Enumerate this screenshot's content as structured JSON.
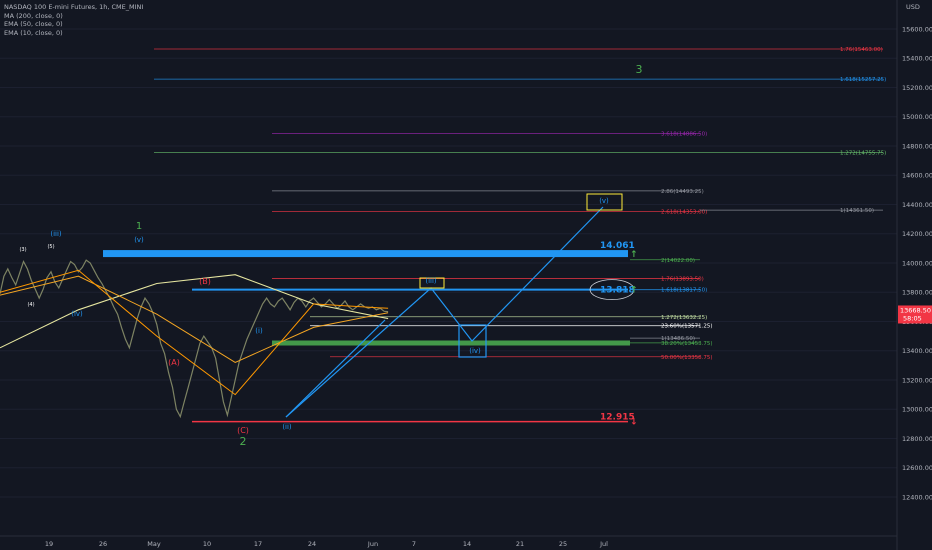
{
  "header": {
    "symbol": "NASDAQ 100 E-mini Futures, 1h, CME_MINI",
    "indicators": [
      "MA (200, close, 0)",
      "EMA (50, close, 0)",
      "EMA (10, close, 0)"
    ]
  },
  "currency": "USD",
  "price_tag": {
    "price": "13668.50",
    "countdown": "58:05",
    "value": 13668.5
  },
  "colors": {
    "bg": "#131722",
    "blue": "#2196f3",
    "green": "#4caf50",
    "red": "#f23645",
    "yellow": "#ffeb3b",
    "orange": "#ff9800",
    "ma": "#e6e6a0"
  },
  "chart_data": {
    "type": "line",
    "ylim": [
      12100,
      15800
    ],
    "y_ticks": [
      12400,
      12600,
      12800,
      13000,
      13200,
      13400,
      13600,
      13800,
      14000,
      14200,
      14400,
      14600,
      14800,
      15000,
      15200,
      15400,
      15600
    ],
    "x_ticks": [
      "19",
      "26",
      "May",
      "10",
      "17",
      "24",
      "Jun",
      "7",
      "14",
      "21",
      "25",
      "Jul"
    ],
    "fib_levels": [
      {
        "label": "1.76(15463.00)",
        "value": 15463,
        "color": "#f23645"
      },
      {
        "label": "1.618(15257.25)",
        "value": 15257.25,
        "color": "#2196f3"
      },
      {
        "label": "3.618(14886.50)",
        "value": 14886.5,
        "color": "#9c27b0"
      },
      {
        "label": "1.272(14755.75)",
        "value": 14755.75,
        "color": "#66bb6a"
      },
      {
        "label": "2.86(14493.25)",
        "value": 14493.25,
        "color": "#9598a1"
      },
      {
        "label": "2.618(14353.00)",
        "value": 14353,
        "color": "#f23645"
      },
      {
        "label": "1(14361.50)",
        "value": 14361.5,
        "color": "#9598a1"
      },
      {
        "label": "2(14022.00)",
        "value": 14022,
        "color": "#4caf50"
      },
      {
        "label": "1.76(13893.50)",
        "value": 13893.5,
        "color": "#f23645"
      },
      {
        "label": "1.618(13817.50)",
        "value": 13817.5,
        "color": "#2196f3"
      },
      {
        "label": "1.272(13632.25)",
        "value": 13632.25,
        "color": "#c5e1a5"
      },
      {
        "label": "23.60%(13571.25)",
        "value": 13571.25,
        "color": "#ffffff"
      },
      {
        "label": "1(13486.50)",
        "value": 13486.5,
        "color": "#9598a1"
      },
      {
        "label": "38.20%(13453.75)",
        "value": 13453.75,
        "color": "#4caf50"
      },
      {
        "label": "50.00%(13358.75)",
        "value": 13358.75,
        "color": "#f23645"
      }
    ],
    "key_levels": [
      {
        "label": "14.061",
        "value": 14061,
        "color": "#2196f3"
      },
      {
        "label": "13.818",
        "value": 13818,
        "color": "#2196f3"
      },
      {
        "label": "12.915",
        "value": 12915,
        "color": "#f23645"
      }
    ],
    "wave_labels": [
      "(3)",
      "(5)",
      "(4)",
      "(iii)",
      "(iv)",
      "1",
      "(v)",
      "(B)",
      "(A)",
      "(C)",
      "2",
      "(i)",
      "(ii)",
      "(iii)",
      "(iv)",
      "(v)",
      "3"
    ],
    "price_series": {
      "x": [
        0,
        1,
        2,
        3,
        4,
        5,
        6,
        7,
        8,
        9,
        10,
        11,
        12,
        13,
        14,
        15,
        16,
        17,
        18,
        19,
        20,
        21,
        22,
        23,
        24,
        25,
        26,
        27,
        28,
        29,
        30,
        31,
        32,
        33,
        34,
        35,
        36,
        37,
        38,
        39,
        40,
        41,
        42,
        43,
        44,
        45,
        46,
        47,
        48,
        49,
        50,
        51,
        52,
        53,
        54,
        55,
        56,
        57,
        58,
        59,
        60,
        61,
        62,
        63,
        64,
        65,
        66,
        67,
        68,
        69,
        70,
        71,
        72,
        73,
        74,
        75,
        76,
        77,
        78,
        79,
        80,
        81,
        82,
        83,
        84,
        85,
        86,
        87,
        88,
        89,
        90,
        91,
        92,
        93,
        94,
        95,
        96,
        97,
        98,
        99
      ],
      "close": [
        13790,
        13910,
        13960,
        13900,
        13850,
        13930,
        14010,
        13960,
        13880,
        13820,
        13760,
        13820,
        13900,
        13940,
        13870,
        13830,
        13890,
        13950,
        14010,
        13990,
        13940,
        13970,
        14020,
        14000,
        13950,
        13900,
        13860,
        13810,
        13760,
        13700,
        13650,
        13560,
        13480,
        13420,
        13520,
        13620,
        13700,
        13760,
        13720,
        13660,
        13580,
        13450,
        13380,
        13250,
        13150,
        13000,
        12950,
        13050,
        13150,
        13250,
        13350,
        13450,
        13500,
        13460,
        13420,
        13350,
        13200,
        13050,
        12960,
        13080,
        13200,
        13320,
        13400,
        13480,
        13540,
        13600,
        13660,
        13720,
        13760,
        13720,
        13700,
        13740,
        13760,
        13720,
        13680,
        13730,
        13760,
        13740,
        13700,
        13740,
        13760,
        13730,
        13700,
        13720,
        13750,
        13720,
        13690,
        13710,
        13740,
        13700,
        13680,
        13700,
        13720,
        13700,
        13690,
        13700,
        13680,
        13690,
        13670,
        13668
      ]
    },
    "ma200": {
      "x": [
        0,
        20,
        40,
        60,
        80,
        99
      ],
      "y": [
        13420,
        13680,
        13860,
        13920,
        13720,
        13620
      ]
    },
    "ema50": {
      "x": [
        0,
        20,
        40,
        60,
        80,
        99
      ],
      "y": [
        13780,
        13910,
        13650,
        13320,
        13560,
        13660
      ]
    },
    "ema10": {
      "x": [
        0,
        20,
        40,
        60,
        80,
        99
      ],
      "y": [
        13800,
        13950,
        13500,
        13100,
        13720,
        13690
      ]
    }
  }
}
